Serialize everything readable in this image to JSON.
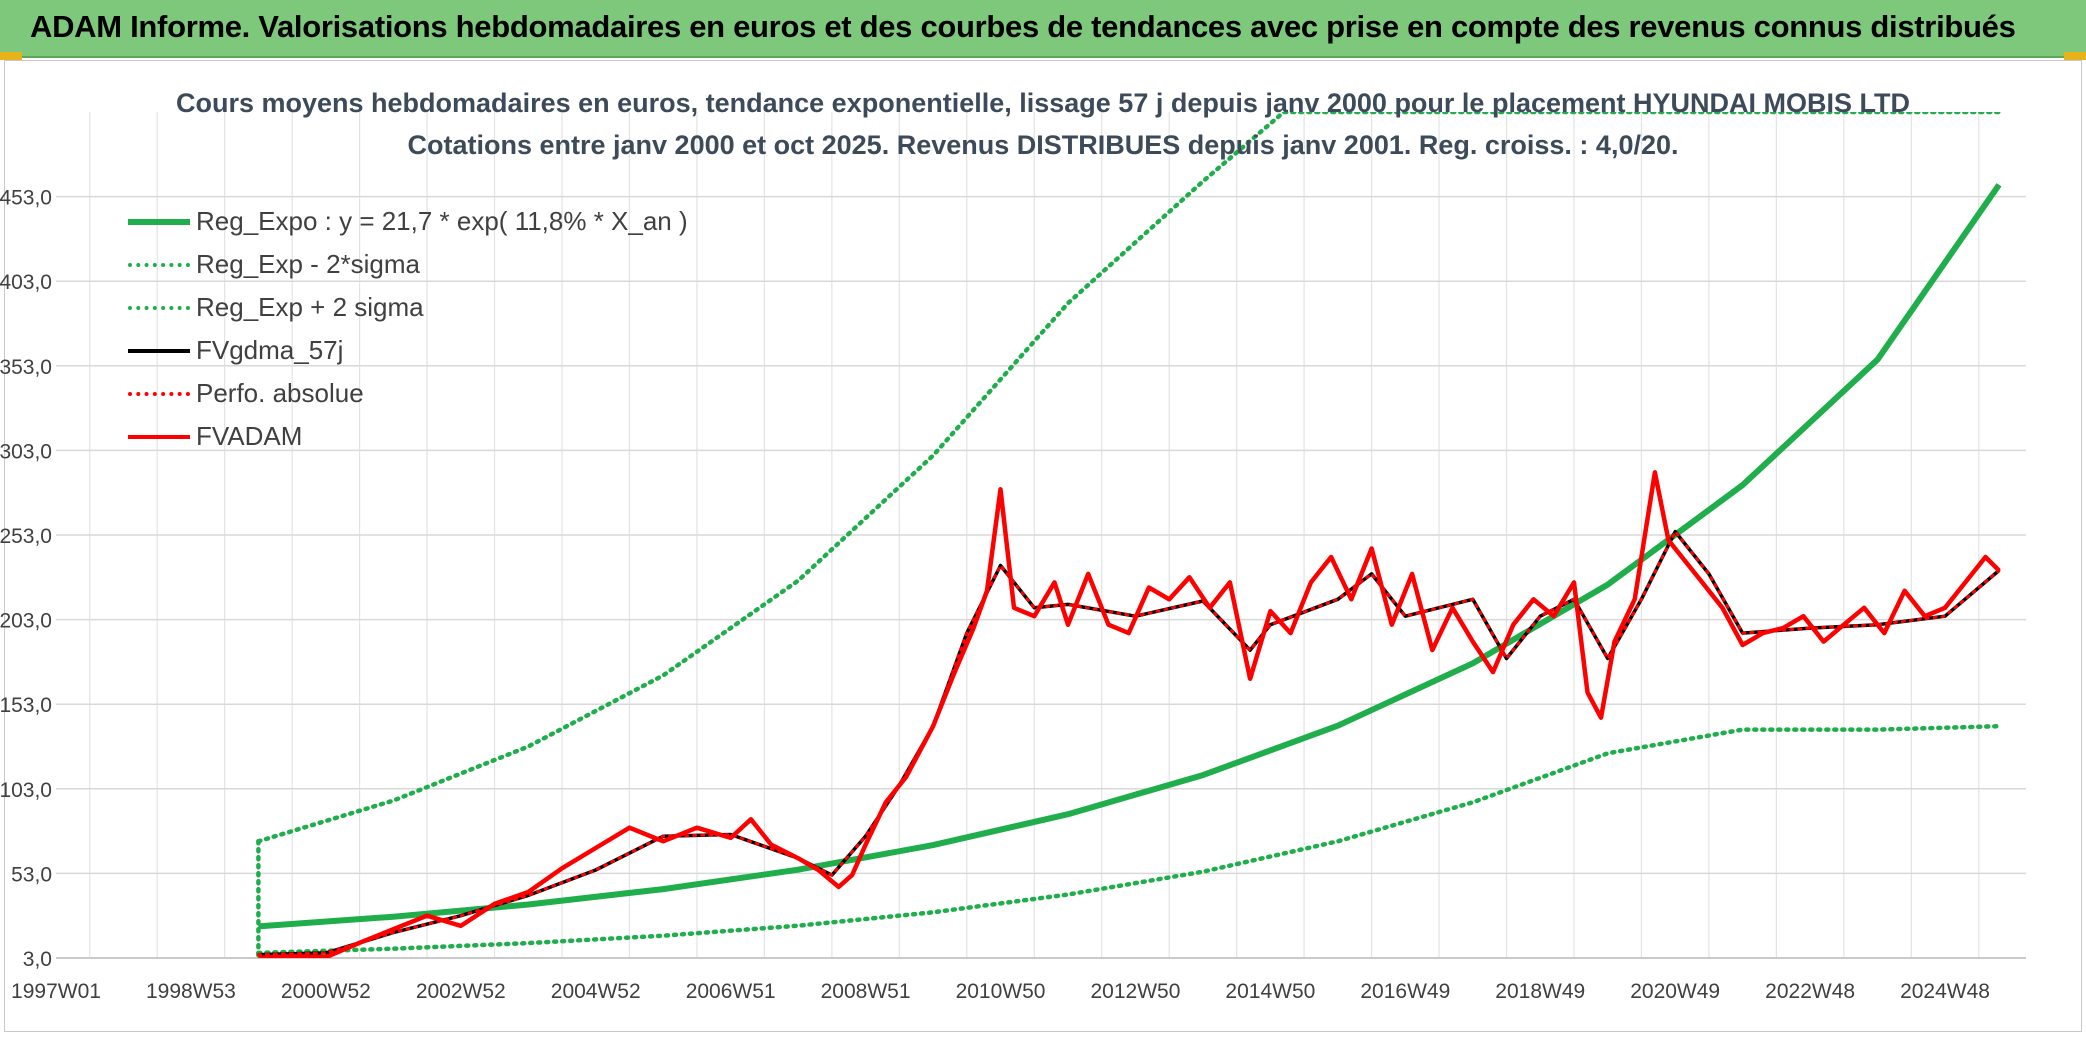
{
  "header": {
    "title": "ADAM Informe. Valorisations hebdomadaires en euros et des courbes de tendances avec prise en compte des revenus connus distribués"
  },
  "chart_data": {
    "type": "line",
    "title": "Cours moyens hebdomadaires en euros, tendance exponentielle, lissage 57 j depuis janv 2000 pour le placement HYUNDAI MOBIS LTD",
    "subtitle": "Cotations entre janv 2000 et oct 2025. Revenus DISTRIBUES depuis janv 2001. Reg. croiss. : 4,0/20.",
    "xlabel": "",
    "ylabel": "",
    "x_range": [
      1997.0,
      2026.2
    ],
    "ylim": [
      3,
      503
    ],
    "y_ticks": [
      3,
      53,
      103,
      153,
      203,
      253,
      303,
      353,
      403,
      453
    ],
    "y_tick_labels": [
      "3,0",
      "53,0",
      "103,0",
      "153,0",
      "203,0",
      "253,0",
      "303,0",
      "353,0",
      "403,0",
      "453,0"
    ],
    "x_ticks": [
      1997.0,
      1999.0,
      2001.0,
      2003.0,
      2005.0,
      2007.0,
      2009.0,
      2011.0,
      2013.0,
      2015.0,
      2017.0,
      2019.0,
      2021.0,
      2023.0,
      2025.0
    ],
    "x_tick_labels": [
      "1997W01",
      "1998W53",
      "2000W52",
      "2002W52",
      "2004W52",
      "2006W51",
      "2008W51",
      "2010W50",
      "2012W50",
      "2014W50",
      "2016W49",
      "2018W49",
      "2020W49",
      "2022W48",
      "2024W48"
    ],
    "grid": true,
    "legend_position": "top-left",
    "series": [
      {
        "name": "Reg_Expo : y = 21,7 * exp( 11,8% *  X_an )",
        "color": "#1fae4b",
        "style": "solid",
        "x": [
          2000.0,
          2002.0,
          2004.0,
          2006.0,
          2008.0,
          2010.0,
          2012.0,
          2014.0,
          2016.0,
          2018.0,
          2020.0,
          2022.0,
          2024.0,
          2025.8
        ],
        "values": [
          21.7,
          27.4,
          34.6,
          43.7,
          55.2,
          69.7,
          88.0,
          111.1,
          140.3,
          177.2,
          223.7,
          282.5,
          356.7,
          460.0
        ]
      },
      {
        "name": "Reg_Exp - 2*sigma",
        "color": "#1fae4b",
        "style": "dotted",
        "x": [
          2000.0,
          2002.0,
          2004.0,
          2006.0,
          2008.0,
          2010.0,
          2012.0,
          2014.0,
          2016.0,
          2018.0,
          2020.0,
          2022.0,
          2024.0,
          2025.8
        ],
        "values": [
          6.0,
          8.5,
          11.8,
          16.2,
          22.1,
          30.0,
          40.5,
          54.0,
          72.0,
          95.0,
          124.0,
          138.0,
          138.0,
          140.0
        ]
      },
      {
        "name": "Reg_Exp + 2 sigma",
        "color": "#1fae4b",
        "style": "dotted",
        "x": [
          2000.0,
          2002.0,
          2004.0,
          2006.0,
          2008.0,
          2010.0,
          2012.0,
          2014.0,
          2015.2,
          2016.0,
          2025.8
        ],
        "values": [
          72.0,
          96.0,
          128.0,
          170.0,
          226.0,
          300.0,
          390.0,
          462.0,
          503.0,
          503.0,
          503.0
        ]
      },
      {
        "name": "FVgdma_57j",
        "color": "#000000",
        "style": "solid",
        "x": [
          2000.0,
          2001.0,
          2002.0,
          2003.0,
          2004.0,
          2005.0,
          2006.0,
          2007.0,
          2008.0,
          2008.5,
          2009.0,
          2009.5,
          2010.0,
          2010.5,
          2011.0,
          2011.5,
          2012.0,
          2013.0,
          2014.0,
          2014.7,
          2015.0,
          2016.0,
          2016.5,
          2017.0,
          2018.0,
          2018.5,
          2019.0,
          2019.5,
          2020.0,
          2020.5,
          2021.0,
          2021.5,
          2022.0,
          2023.0,
          2024.0,
          2025.0,
          2025.8
        ],
        "values": [
          5.0,
          6.0,
          18.0,
          28.0,
          40.0,
          55.0,
          75.0,
          76.0,
          62.0,
          52.0,
          75.0,
          105.0,
          140.0,
          195.0,
          235.0,
          210.0,
          212.0,
          205.0,
          214.0,
          185.0,
          200.0,
          215.0,
          230.0,
          205.0,
          215.0,
          180.0,
          205.0,
          215.0,
          180.0,
          215.0,
          255.0,
          230.0,
          195.0,
          198.0,
          200.0,
          205.0,
          232.0
        ]
      },
      {
        "name": "Perfo. absolue",
        "color": "#ff0000",
        "style": "dotted",
        "x": [
          2000.0,
          2001.0,
          2002.0,
          2003.0,
          2004.0,
          2005.0,
          2006.0,
          2007.0,
          2008.0,
          2008.5,
          2009.0,
          2009.5,
          2010.0,
          2010.5,
          2011.0,
          2011.5,
          2012.0,
          2013.0,
          2014.0,
          2014.7,
          2015.0,
          2016.0,
          2016.5,
          2017.0,
          2018.0,
          2018.5,
          2019.0,
          2019.5,
          2020.0,
          2020.5,
          2021.0,
          2021.5,
          2022.0,
          2023.0,
          2024.0,
          2025.0,
          2025.8
        ],
        "values": [
          5.0,
          6.0,
          18.0,
          28.0,
          40.0,
          55.0,
          75.0,
          76.0,
          62.0,
          52.0,
          75.0,
          105.0,
          140.0,
          195.0,
          235.0,
          210.0,
          212.0,
          205.0,
          214.0,
          185.0,
          200.0,
          215.0,
          230.0,
          205.0,
          215.0,
          180.0,
          205.0,
          215.0,
          180.0,
          215.0,
          255.0,
          230.0,
          195.0,
          198.0,
          200.0,
          205.0,
          232.0
        ]
      },
      {
        "name": "FVADAM",
        "color": "#ff0000",
        "style": "solid",
        "x": [
          2000.0,
          2000.5,
          2001.0,
          2001.5,
          2002.0,
          2002.5,
          2003.0,
          2003.5,
          2004.0,
          2004.5,
          2005.0,
          2005.5,
          2006.0,
          2006.5,
          2007.0,
          2007.3,
          2007.6,
          2008.0,
          2008.3,
          2008.6,
          2008.8,
          2009.0,
          2009.3,
          2009.6,
          2010.0,
          2010.3,
          2010.6,
          2010.8,
          2011.0,
          2011.2,
          2011.5,
          2011.8,
          2012.0,
          2012.3,
          2012.6,
          2012.9,
          2013.2,
          2013.5,
          2013.8,
          2014.1,
          2014.4,
          2014.7,
          2015.0,
          2015.3,
          2015.6,
          2015.9,
          2016.2,
          2016.5,
          2016.8,
          2017.1,
          2017.4,
          2017.7,
          2018.0,
          2018.3,
          2018.6,
          2018.9,
          2019.2,
          2019.5,
          2019.7,
          2019.9,
          2020.1,
          2020.4,
          2020.7,
          2020.9,
          2021.1,
          2021.4,
          2021.7,
          2022.0,
          2022.3,
          2022.6,
          2022.9,
          2023.2,
          2023.5,
          2023.8,
          2024.1,
          2024.4,
          2024.7,
          2025.0,
          2025.3,
          2025.6,
          2025.8
        ],
        "values": [
          3.0,
          4.0,
          3.5,
          12.0,
          20.0,
          28.0,
          22.0,
          35.0,
          42.0,
          56.0,
          68.0,
          80.0,
          72.0,
          80.0,
          74.0,
          85.0,
          70.0,
          62.0,
          55.0,
          45.0,
          52.0,
          70.0,
          95.0,
          110.0,
          140.0,
          170.0,
          198.0,
          220.0,
          280.0,
          210.0,
          205.0,
          225.0,
          200.0,
          230.0,
          200.0,
          195.0,
          222.0,
          215.0,
          228.0,
          210.0,
          225.0,
          168.0,
          208.0,
          195.0,
          225.0,
          240.0,
          215.0,
          245.0,
          200.0,
          230.0,
          185.0,
          210.0,
          190.0,
          172.0,
          200.0,
          215.0,
          205.0,
          225.0,
          160.0,
          145.0,
          190.0,
          215.0,
          290.0,
          250.0,
          240.0,
          225.0,
          210.0,
          188.0,
          195.0,
          198.0,
          205.0,
          190.0,
          200.0,
          210.0,
          195.0,
          220.0,
          205.0,
          210.0,
          225.0,
          240.0,
          232.0
        ]
      }
    ]
  },
  "colors": {
    "header_bg": "#7dc87a",
    "trend_green": "#1fae4b",
    "series_red": "#ff0000",
    "smooth_black": "#000000",
    "grid": "#d9d9d9",
    "title_text": "#3c4a5a"
  }
}
